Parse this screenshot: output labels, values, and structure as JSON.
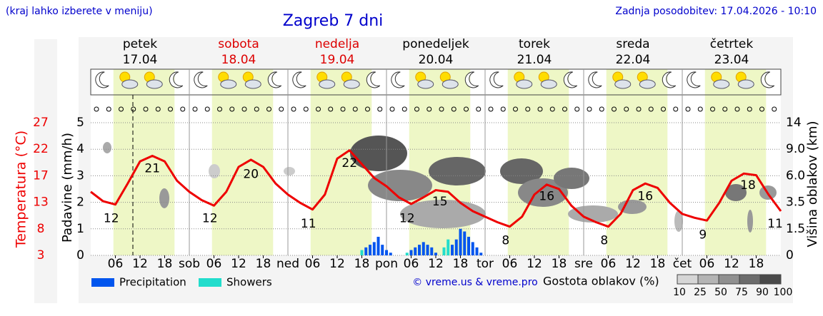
{
  "header": {
    "note": "(kraj lahko izberete v meniju)",
    "updated": "Zadnja posodobitev: 17.04.2026 - 10:10"
  },
  "chart_data": {
    "type": "line",
    "title": "Zagreb 7 dni",
    "days": [
      {
        "name": "petek",
        "date": "17.04",
        "color": "#000000"
      },
      {
        "name": "sobota",
        "date": "18.04",
        "color": "#dd0000"
      },
      {
        "name": "nedelja",
        "date": "19.04",
        "color": "#dd0000"
      },
      {
        "name": "ponedeljek",
        "date": "20.04",
        "color": "#000000"
      },
      {
        "name": "torek",
        "date": "21.04",
        "color": "#000000"
      },
      {
        "name": "sreda",
        "date": "22.04",
        "color": "#000000"
      },
      {
        "name": "četrtek",
        "date": "23.04",
        "color": "#000000"
      }
    ],
    "xlim": [
      0,
      168
    ],
    "xticks": [
      {
        "value": 6,
        "label": "06"
      },
      12,
      18,
      {
        "value": 24,
        "label": "sob"
      },
      {
        "value": 30,
        "label": "06"
      },
      {
        "value": 36,
        "label": "12"
      },
      {
        "value": 42,
        "label": "18"
      },
      {
        "value": 48,
        "label": "ned"
      },
      {
        "value": 54,
        "label": "06"
      },
      {
        "value": 60,
        "label": "12"
      },
      {
        "value": 66,
        "label": "18"
      },
      {
        "value": 72,
        "label": "pon"
      },
      {
        "value": 78,
        "label": "06"
      },
      {
        "value": 84,
        "label": "12"
      },
      {
        "value": 90,
        "label": "18"
      },
      {
        "value": 96,
        "label": "tor"
      },
      {
        "value": 102,
        "label": "06"
      },
      {
        "value": 108,
        "label": "12"
      },
      {
        "value": 114,
        "label": "18"
      },
      {
        "value": 120,
        "label": "sre"
      },
      {
        "value": 126,
        "label": "06"
      },
      {
        "value": 132,
        "label": "12"
      },
      {
        "value": 138,
        "label": "18"
      },
      {
        "value": 144,
        "label": "čet"
      },
      {
        "value": 150,
        "label": "06"
      },
      {
        "value": 156,
        "label": "12"
      },
      {
        "value": 162,
        "label": "18"
      }
    ],
    "ylabel": "Padavine (mm/h)",
    "ylim": [
      0,
      5
    ],
    "yticks": [
      0,
      1,
      2,
      3,
      4,
      5
    ],
    "y2label": "Višina oblakov (km)",
    "y2lim": [
      0,
      14
    ],
    "y2ticks": [
      0,
      {
        "value": 1.5,
        "label": "1.5"
      },
      {
        "value": 3.5,
        "label": "3.5"
      },
      {
        "value": 6,
        "label": "6.0"
      },
      {
        "value": 9,
        "label": "9.0"
      },
      14
    ],
    "grid": true,
    "temperature": {
      "label": "Temperatura (°C)",
      "color": "#ee0000",
      "ylim": [
        3,
        27
      ],
      "yticks": [
        3,
        {
          "value": 7.8,
          "label": "8"
        },
        {
          "value": 12.6,
          "label": "13"
        },
        {
          "value": 17.4,
          "label": "17"
        },
        {
          "value": 22.2,
          "label": "22"
        },
        27
      ],
      "x": [
        0,
        3,
        6,
        9,
        12,
        15,
        18,
        21,
        24,
        27,
        30,
        33,
        36,
        39,
        42,
        45,
        48,
        51,
        54,
        57,
        60,
        63,
        66,
        69,
        72,
        75,
        78,
        81,
        84,
        87,
        90,
        93,
        96,
        99,
        102,
        105,
        108,
        111,
        114,
        117,
        120,
        123,
        126,
        129,
        132,
        135,
        138,
        141,
        144,
        147,
        150,
        153,
        156,
        159,
        162,
        165,
        168
      ],
      "values": [
        14.5,
        12.8,
        12.2,
        16,
        20,
        21,
        20,
        16.5,
        14.5,
        13,
        12,
        14.5,
        19,
        20.3,
        19,
        16,
        14,
        12.5,
        11.3,
        14,
        20.5,
        22,
        19.5,
        17,
        15.5,
        13.5,
        12.3,
        13.5,
        14.8,
        14.5,
        12.5,
        11,
        10,
        9,
        8.2,
        10,
        14,
        15.8,
        15,
        12,
        10,
        9,
        8.2,
        10.5,
        14.8,
        16,
        15.2,
        12.5,
        10.5,
        9.8,
        9.3,
        12.5,
        16.5,
        17.8,
        17.5,
        14,
        11
      ],
      "extremes": {
        "x": [
          5,
          15,
          29,
          39,
          53,
          63,
          77,
          85,
          101,
          111,
          125,
          135,
          149,
          160,
          168
        ],
        "values": [
          12,
          21,
          12,
          20,
          11,
          22,
          12,
          15,
          8,
          16,
          8,
          16,
          9,
          18,
          11
        ]
      }
    },
    "series": [
      {
        "name": "Precipitation",
        "color": "#0055ee",
        "x": [
          67,
          68,
          69,
          70,
          71,
          72,
          73,
          78,
          79,
          80,
          81,
          82,
          83,
          84,
          88,
          89,
          90,
          91,
          92,
          93,
          94,
          95
        ],
        "values": [
          0.3,
          0.4,
          0.5,
          0.7,
          0.4,
          0.2,
          0.1,
          0.2,
          0.3,
          0.4,
          0.5,
          0.4,
          0.3,
          0.1,
          0.4,
          0.6,
          1.0,
          0.9,
          0.7,
          0.5,
          0.3,
          0.1
        ]
      },
      {
        "name": "Showers",
        "color": "#22ddcc",
        "x": [
          66,
          77,
          86,
          87
        ],
        "values": [
          0.2,
          0.1,
          0.3,
          0.6
        ]
      }
    ],
    "credit": "© vreme.us & vreme.pro",
    "cloud_legend": {
      "title": "Gostota oblakov (%)",
      "levels": [
        10,
        25,
        50,
        75,
        90,
        100
      ],
      "colors": [
        "#d6d6d6",
        "#b4b4b4",
        "#909090",
        "#6c6c6c",
        "#4a4a4a"
      ]
    }
  }
}
